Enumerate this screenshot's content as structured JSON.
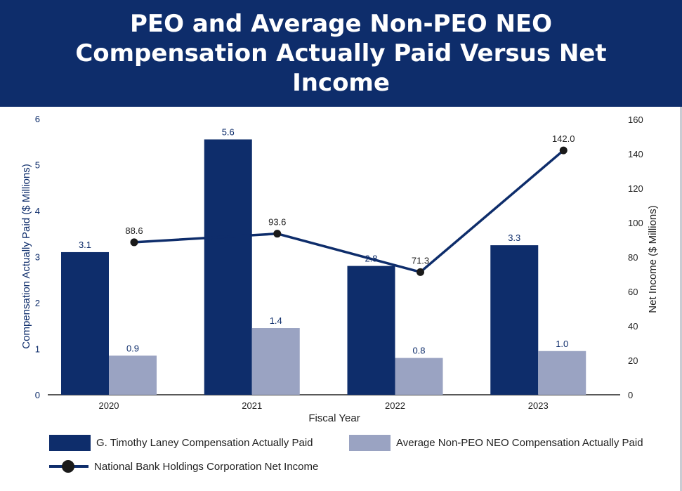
{
  "title": "PEO and Average Non-PEO NEO Compensation Actually Paid Versus Net Income",
  "colors": {
    "header_bg": "#0e2d6b",
    "peo": "#0e2d6b",
    "neo": "#9aa3c2",
    "line": "#0e2d6b",
    "marker": "#1a1a1a",
    "label": "#0e2d6b"
  },
  "chart_data": {
    "type": "bar",
    "xlabel": "Fiscal Year",
    "ylabel_left": "Compensation Actually Paid ($ Millions)",
    "ylabel_right": "Net Income ($ Millions)",
    "categories": [
      "2020",
      "2021",
      "2022",
      "2023"
    ],
    "ylim_left": [
      0,
      6
    ],
    "yticks_left": [
      "0",
      "1",
      "2",
      "3",
      "4",
      "5",
      "6"
    ],
    "ylim_right": [
      0,
      160
    ],
    "yticks_right": [
      "0",
      "20",
      "40",
      "60",
      "80",
      "100",
      "120",
      "140",
      "160"
    ],
    "series": [
      {
        "name": "G. Timothy Laney Compensation Actually Paid",
        "kind": "bar",
        "axis": "left",
        "values": [
          3.1,
          5.55,
          2.8,
          3.25
        ],
        "labels": [
          "3.1",
          "5.6",
          "2.8",
          "3.3"
        ]
      },
      {
        "name": "Average Non-PEO NEO Compensation Actually Paid",
        "kind": "bar",
        "axis": "left",
        "values": [
          0.85,
          1.45,
          0.8,
          0.95
        ],
        "labels": [
          "0.9",
          "1.4",
          "0.8",
          "1.0"
        ]
      },
      {
        "name": "National Bank Holdings Corporation Net Income",
        "kind": "line",
        "axis": "right",
        "values": [
          88.6,
          93.6,
          71.3,
          142.0
        ],
        "labels": [
          "88.6",
          "93.6",
          "71.3",
          "142.0"
        ]
      }
    ]
  },
  "legend": {
    "peo": "G. Timothy Laney Compensation Actually Paid",
    "neo": "Average Non-PEO NEO Compensation Actually Paid",
    "net_income": "National Bank Holdings Corporation Net Income"
  }
}
